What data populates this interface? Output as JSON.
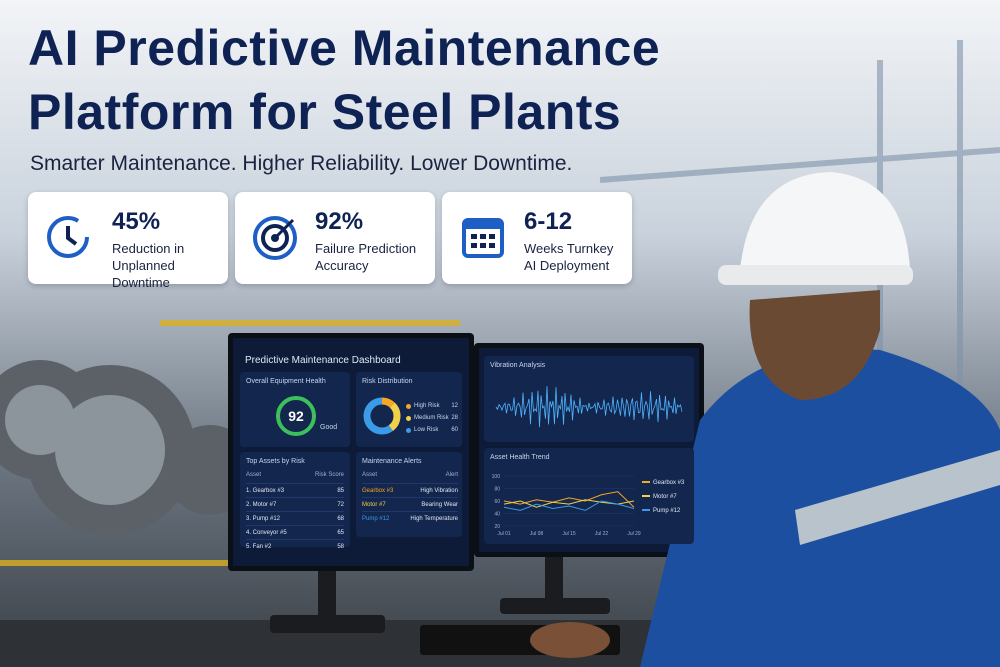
{
  "header": {
    "title_line1": "AI Predictive Maintenance",
    "title_line2": "Platform for Steel Plants",
    "subtitle": "Smarter Maintenance. Higher Reliability. Lower Downtime."
  },
  "stats": [
    {
      "value": "45%",
      "label_line1": "Reduction in",
      "label_line2": "Unplanned Downtime"
    },
    {
      "value": "92%",
      "label_line1": "Failure Prediction",
      "label_line2": "Accuracy"
    },
    {
      "value": "6-12",
      "label_line1": "Weeks Turnkey",
      "label_line2": "AI Deployment"
    }
  ],
  "dashboard": {
    "title": "Predictive Maintenance Dashboard",
    "health": {
      "title": "Overall Equipment Health",
      "score": 92,
      "status": "Good"
    },
    "risk": {
      "title": "Risk Distribution",
      "items": [
        {
          "name": "High Risk",
          "value": 12,
          "color": "#f5a623"
        },
        {
          "name": "Medium Risk",
          "value": 28,
          "color": "#f2d04a"
        },
        {
          "name": "Low Risk",
          "value": 60,
          "color": "#3b9be8"
        }
      ]
    },
    "top_assets": {
      "title": "Top Assets by Risk",
      "columns": [
        "Asset",
        "Risk Score"
      ],
      "rows": [
        [
          "1. Gearbox #3",
          85
        ],
        [
          "2. Motor #7",
          72
        ],
        [
          "3. Pump #12",
          68
        ],
        [
          "4. Conveyor #5",
          65
        ],
        [
          "5. Fan #2",
          58
        ]
      ]
    },
    "alerts": {
      "title": "Maintenance Alerts",
      "columns": [
        "Asset",
        "Alert"
      ],
      "rows": [
        [
          "Gearbox #3",
          "High Vibration"
        ],
        [
          "Motor #7",
          "Bearing Wear"
        ],
        [
          "Pump #12",
          "High Temperature"
        ]
      ]
    }
  },
  "analysis": {
    "vibration_title": "Vibration Analysis",
    "chart_data": {
      "type": "line",
      "title": "Asset Health Trend",
      "categories": [
        "Jul 01",
        null,
        "Jul 08",
        null,
        "Jul 15",
        null,
        "Jul 22",
        null,
        "Jul 29"
      ],
      "series": [
        {
          "name": "Gearbox #3",
          "color": "#f5a623",
          "values": [
            60,
            55,
            62,
            58,
            65,
            60,
            70,
            75,
            50
          ]
        },
        {
          "name": "Motor #7",
          "color": "#f2d04a",
          "values": [
            55,
            60,
            50,
            58,
            55,
            62,
            58,
            55,
            60
          ]
        },
        {
          "name": "Pump #12",
          "color": "#3b9be8",
          "values": [
            50,
            45,
            55,
            48,
            52,
            45,
            60,
            55,
            48
          ]
        }
      ],
      "ylim": [
        20,
        100
      ],
      "yticks": [
        20,
        40,
        60,
        80,
        100
      ]
    }
  }
}
